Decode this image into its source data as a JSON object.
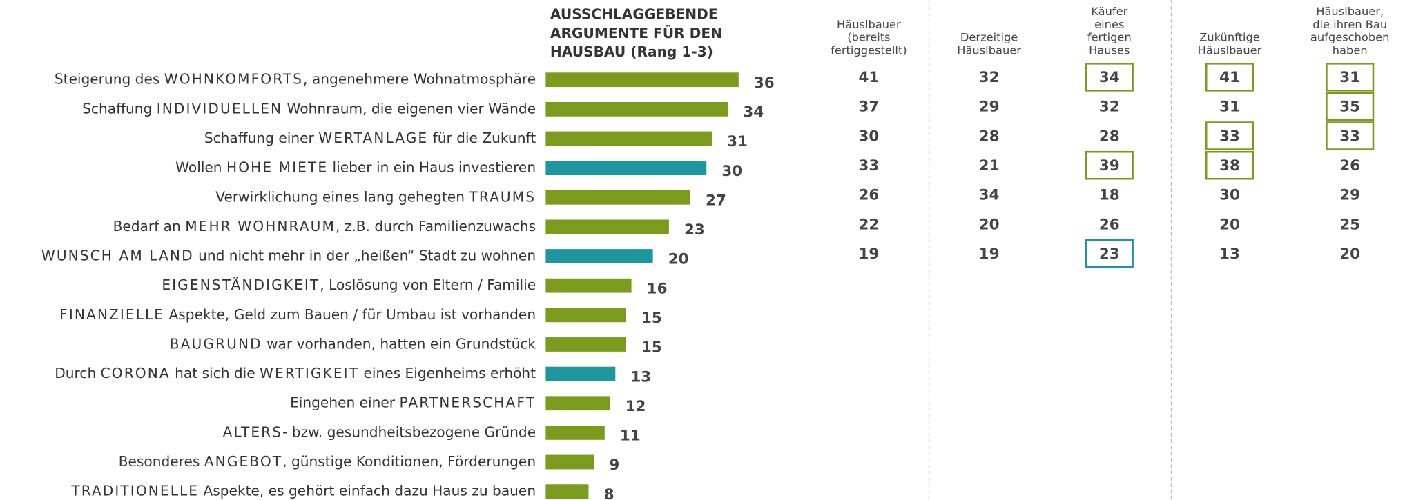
{
  "chart_data": {
    "type": "bar",
    "title": [
      "AUSSCHLAGGEBENDE",
      "ARGUMENTE FÜR DEN",
      "HAUSBAU (Rang 1-3)"
    ],
    "categories": [
      "Steigerung des WOHNKOMFORTS, angenehmere Wohnatmosphäre",
      "Schaffung INDIVIDUELLEN Wohnraum, die eigenen vier Wände",
      "Schaffung einer WERTANLAGE für die Zukunft",
      "Wollen HOHE MIETE  lieber in ein Haus investieren",
      "Verwirklichung eines lang gehegten TRAUMS",
      "Bedarf an MEHR WOHNRAUM, z.B. durch Familienzuwachs",
      "WUNSCH AM LAND und nicht mehr in der „heißen“ Stadt zu wohnen",
      "EIGENSTÄNDIGKEIT, Loslösung von Eltern / Familie",
      "FINANZIELLE Aspekte, Geld zum Bauen / für Umbau ist vorhanden",
      "BAUGRUND war vorhanden, hatten ein Grundstück",
      "Durch CORONA hat sich die WERTIGKEIT eines  Eigenheims erhöht",
      "Eingehen einer PARTNERSCHAFT",
      "ALTERS- bzw. gesundheitsbezogene Gründe",
      "Besonderes ANGEBOT, günstige Konditionen, Förderungen",
      "TRADITIONELLE Aspekte, es gehört einfach dazu Haus zu bauen"
    ],
    "values": [
      36,
      34,
      31,
      30,
      27,
      23,
      20,
      16,
      15,
      15,
      13,
      12,
      11,
      9,
      8
    ],
    "colors": [
      "#7a9b1c",
      "#7a9b1c",
      "#7a9b1c",
      "#1e969e",
      "#7a9b1c",
      "#7a9b1c",
      "#1e969e",
      "#7a9b1c",
      "#7a9b1c",
      "#7a9b1c",
      "#1e969e",
      "#7a9b1c",
      "#7a9b1c",
      "#7a9b1c",
      "#7a9b1c"
    ],
    "columns": [
      {
        "name": [
          "Häuslbauer",
          "(bereits",
          "fertiggestellt)"
        ],
        "values": [
          41,
          37,
          30,
          33,
          26,
          22,
          19
        ],
        "box_colors": [
          null,
          null,
          null,
          null,
          null,
          null,
          null
        ]
      },
      {
        "name": [
          "Derzeitige",
          "Häuslbauer"
        ],
        "values": [
          32,
          29,
          28,
          21,
          34,
          20,
          19
        ],
        "box_colors": [
          null,
          null,
          null,
          null,
          null,
          null,
          null
        ]
      },
      {
        "name": [
          "Käufer",
          "eines",
          "fertigen",
          "Hauses"
        ],
        "values": [
          34,
          32,
          28,
          39,
          18,
          26,
          23
        ],
        "box_colors": [
          "#7a9b1c",
          null,
          null,
          "#7a9b1c",
          null,
          null,
          "#1e969e"
        ]
      },
      {
        "name": [
          "Zukünftige",
          "Häuslbauer"
        ],
        "values": [
          41,
          31,
          33,
          38,
          30,
          20,
          13
        ],
        "box_colors": [
          "#7a9b1c",
          null,
          "#7a9b1c",
          "#7a9b1c",
          null,
          null,
          null
        ]
      },
      {
        "name": [
          "Häuslbauer,",
          "die ihren Bau",
          "aufgeschoben",
          "haben"
        ],
        "values": [
          31,
          35,
          33,
          26,
          29,
          25,
          20
        ],
        "box_colors": [
          "#7a9b1c",
          "#7a9b1c",
          "#7a9b1c",
          null,
          null,
          null,
          null
        ]
      }
    ]
  }
}
